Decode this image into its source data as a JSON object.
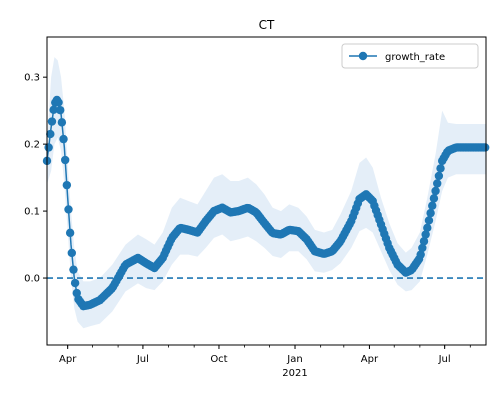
{
  "chart_data": {
    "type": "line",
    "title": "CT",
    "xlabel": "",
    "ylabel": "",
    "x_range": [
      "2020-03-07",
      "2021-08-20"
    ],
    "ylim": [
      -0.1,
      0.36
    ],
    "x_ticks": [
      {
        "date": "2020-04-01",
        "label": "Apr"
      },
      {
        "date": "2020-07-01",
        "label": "Jul"
      },
      {
        "date": "2020-10-01",
        "label": "Oct"
      },
      {
        "date": "2021-01-01",
        "label": "Jan",
        "sublabel": "2021"
      },
      {
        "date": "2021-04-01",
        "label": "Apr"
      },
      {
        "date": "2021-07-01",
        "label": "Jul"
      }
    ],
    "y_ticks": [
      {
        "value": 0.0,
        "label": "0.0"
      },
      {
        "value": 0.1,
        "label": "0.1"
      },
      {
        "value": 0.2,
        "label": "0.2"
      },
      {
        "value": 0.3,
        "label": "0.3"
      }
    ],
    "reference_line": {
      "y": 0.0,
      "style": "dashed",
      "color": "#1f77b4"
    },
    "legend": {
      "placement": "top-right",
      "entries": [
        "growth_rate"
      ]
    },
    "grid": false,
    "colors": {
      "series": "#1f77b4",
      "band": "#dbe8f5"
    },
    "series": [
      {
        "name": "growth_rate",
        "x": [
          "2020-03-07",
          "2020-03-12",
          "2020-03-16",
          "2020-03-20",
          "2020-03-24",
          "2020-03-28",
          "2020-04-01",
          "2020-04-05",
          "2020-04-09",
          "2020-04-13",
          "2020-04-20",
          "2020-04-28",
          "2020-05-10",
          "2020-05-25",
          "2020-06-10",
          "2020-06-25",
          "2020-07-05",
          "2020-07-15",
          "2020-07-25",
          "2020-08-05",
          "2020-08-15",
          "2020-08-25",
          "2020-09-05",
          "2020-09-15",
          "2020-09-25",
          "2020-10-05",
          "2020-10-15",
          "2020-10-25",
          "2020-11-05",
          "2020-11-15",
          "2020-11-25",
          "2020-12-05",
          "2020-12-15",
          "2020-12-25",
          "2021-01-05",
          "2021-01-15",
          "2021-01-25",
          "2021-02-05",
          "2021-02-15",
          "2021-02-25",
          "2021-03-10",
          "2021-03-20",
          "2021-03-28",
          "2021-04-05",
          "2021-04-15",
          "2021-04-25",
          "2021-05-05",
          "2021-05-15",
          "2021-05-22",
          "2021-06-01",
          "2021-06-10",
          "2021-06-20",
          "2021-06-28",
          "2021-07-05",
          "2021-07-15",
          "2021-08-20"
        ],
        "y": [
          0.175,
          0.225,
          0.26,
          0.268,
          0.245,
          0.195,
          0.12,
          0.05,
          0.0,
          -0.03,
          -0.042,
          -0.04,
          -0.033,
          -0.015,
          0.02,
          0.03,
          0.022,
          0.015,
          0.03,
          0.06,
          0.075,
          0.072,
          0.068,
          0.085,
          0.1,
          0.105,
          0.098,
          0.1,
          0.105,
          0.098,
          0.082,
          0.067,
          0.065,
          0.072,
          0.07,
          0.058,
          0.04,
          0.036,
          0.04,
          0.055,
          0.085,
          0.118,
          0.125,
          0.115,
          0.08,
          0.045,
          0.02,
          0.008,
          0.012,
          0.03,
          0.075,
          0.13,
          0.175,
          0.19,
          0.195,
          0.195
        ],
        "lower": [
          0.14,
          0.16,
          0.2,
          0.21,
          0.19,
          0.14,
          0.07,
          0.0,
          -0.045,
          -0.065,
          -0.075,
          -0.072,
          -0.068,
          -0.05,
          -0.02,
          -0.008,
          -0.015,
          -0.018,
          -0.005,
          0.02,
          0.035,
          0.035,
          0.032,
          0.045,
          0.06,
          0.065,
          0.055,
          0.058,
          0.062,
          0.055,
          0.045,
          0.033,
          0.03,
          0.04,
          0.04,
          0.028,
          0.01,
          0.008,
          0.012,
          0.022,
          0.045,
          0.07,
          0.075,
          0.068,
          0.04,
          0.012,
          -0.01,
          -0.02,
          -0.018,
          -0.005,
          0.035,
          0.085,
          0.13,
          0.15,
          0.155,
          0.155
        ],
        "upper": [
          0.2,
          0.3,
          0.33,
          0.325,
          0.3,
          0.25,
          0.17,
          0.1,
          0.045,
          0.01,
          -0.005,
          -0.005,
          0.0,
          0.02,
          0.05,
          0.065,
          0.058,
          0.05,
          0.068,
          0.105,
          0.12,
          0.115,
          0.11,
          0.13,
          0.15,
          0.155,
          0.145,
          0.145,
          0.15,
          0.14,
          0.125,
          0.105,
          0.1,
          0.11,
          0.105,
          0.092,
          0.072,
          0.068,
          0.072,
          0.095,
          0.13,
          0.172,
          0.18,
          0.165,
          0.12,
          0.082,
          0.052,
          0.038,
          0.045,
          0.068,
          0.12,
          0.185,
          0.25,
          0.232,
          0.23,
          0.23
        ]
      }
    ]
  }
}
